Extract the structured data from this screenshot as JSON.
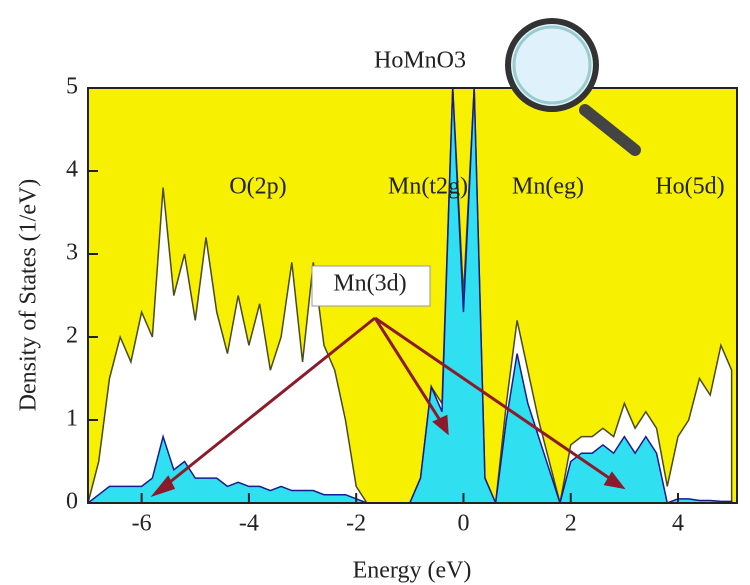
{
  "chart_data": {
    "type": "area",
    "title": "HoMnO3",
    "x_label": "Energy (eV)",
    "y_label": "Density of States (1/eV)",
    "background": "#f7f000",
    "x": [
      -7.0,
      -6.8,
      -6.6,
      -6.4,
      -6.2,
      -6.0,
      -5.8,
      -5.6,
      -5.4,
      -5.2,
      -5.0,
      -4.8,
      -4.6,
      -4.4,
      -4.2,
      -4.0,
      -3.8,
      -3.6,
      -3.4,
      -3.2,
      -3.0,
      -2.8,
      -2.6,
      -2.4,
      -2.2,
      -2.0,
      -1.8,
      -1.6,
      -1.4,
      -1.2,
      -1.0,
      -0.8,
      -0.6,
      -0.4,
      -0.2,
      0.0,
      0.2,
      0.4,
      0.6,
      0.8,
      1.0,
      1.2,
      1.4,
      1.6,
      1.8,
      2.0,
      2.2,
      2.4,
      2.6,
      2.8,
      3.0,
      3.2,
      3.4,
      3.6,
      3.8,
      4.0,
      4.2,
      4.4,
      4.6,
      4.8,
      5.0
    ],
    "series": [
      {
        "color": "#ffffff",
        "line_color": "#4a4a20",
        "values": [
          0,
          0.5,
          1.5,
          2.0,
          1.7,
          2.3,
          2.0,
          3.8,
          2.5,
          3.0,
          2.2,
          3.2,
          2.3,
          1.8,
          2.5,
          1.9,
          2.4,
          1.6,
          2.0,
          2.9,
          1.7,
          2.9,
          1.9,
          1.6,
          1.0,
          0.2,
          0,
          0,
          0,
          0,
          0,
          0.3,
          1.4,
          1.2,
          5,
          2.5,
          5,
          0.3,
          0,
          1.2,
          2.2,
          1.6,
          1.0,
          0.5,
          0,
          0.7,
          0.8,
          0.8,
          0.9,
          0.8,
          1.2,
          0.9,
          1.1,
          0.9,
          0.2,
          0.8,
          1.0,
          1.5,
          1.3,
          1.9,
          1.6
        ]
      },
      {
        "color": "#30dff0",
        "line_color": "#1a1a90",
        "values": [
          0,
          0.1,
          0.2,
          0.2,
          0.2,
          0.2,
          0.3,
          0.8,
          0.4,
          0.5,
          0.3,
          0.3,
          0.3,
          0.2,
          0.25,
          0.2,
          0.2,
          0.15,
          0.2,
          0.15,
          0.15,
          0.15,
          0.1,
          0.1,
          0.1,
          0.05,
          0,
          0,
          0,
          0,
          0,
          0.3,
          1.4,
          1.1,
          5,
          2.3,
          5,
          0.3,
          0,
          1.0,
          1.8,
          1.2,
          0.8,
          0.4,
          0,
          0.5,
          0.6,
          0.6,
          0.7,
          0.6,
          0.8,
          0.6,
          0.8,
          0.6,
          0,
          0.05,
          0.05,
          0.03,
          0.03,
          0.02,
          0.02
        ]
      }
    ],
    "xlim": [
      -7,
      5.1
    ],
    "ylim": [
      0,
      5
    ],
    "xticks": [
      -6,
      -4,
      -2,
      0,
      2,
      4
    ],
    "yticks": [
      0,
      1,
      2,
      3,
      4,
      5
    ],
    "annotations": [
      "O(2p)",
      "Mn(t2g)",
      "Mn(eg)",
      "Ho(5d)",
      "Mn(3d)"
    ]
  }
}
